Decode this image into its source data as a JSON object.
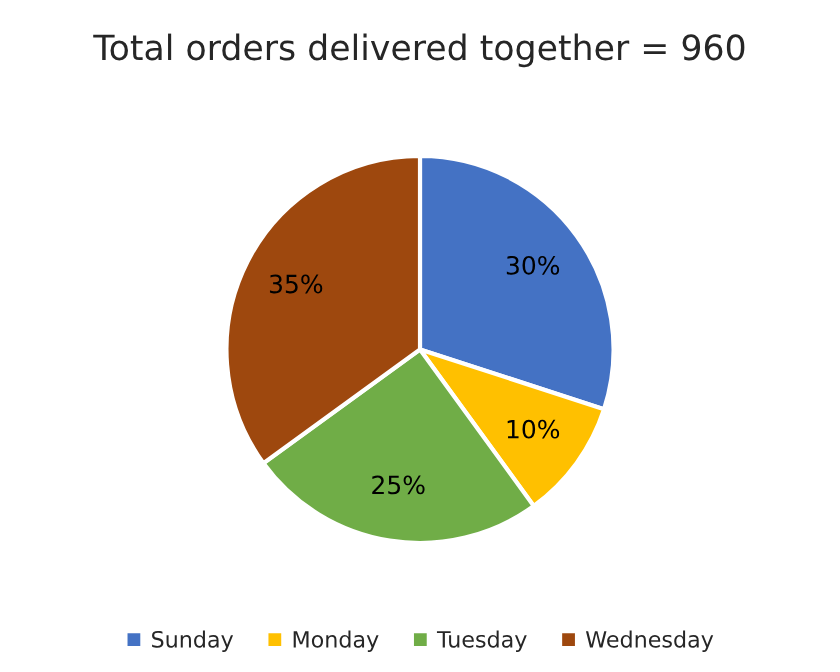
{
  "chart_data": {
    "type": "pie",
    "title": "Total orders delivered together = 960",
    "categories": [
      "Sunday",
      "Monday",
      "Tuesday",
      "Wednesday"
    ],
    "values": [
      30,
      10,
      25,
      35
    ],
    "colors": [
      "#4472c4",
      "#ffc000",
      "#70ad47",
      "#9e480e"
    ],
    "value_labels": [
      "30%",
      "10%",
      "25%",
      "35%"
    ],
    "legend": "bottom"
  }
}
